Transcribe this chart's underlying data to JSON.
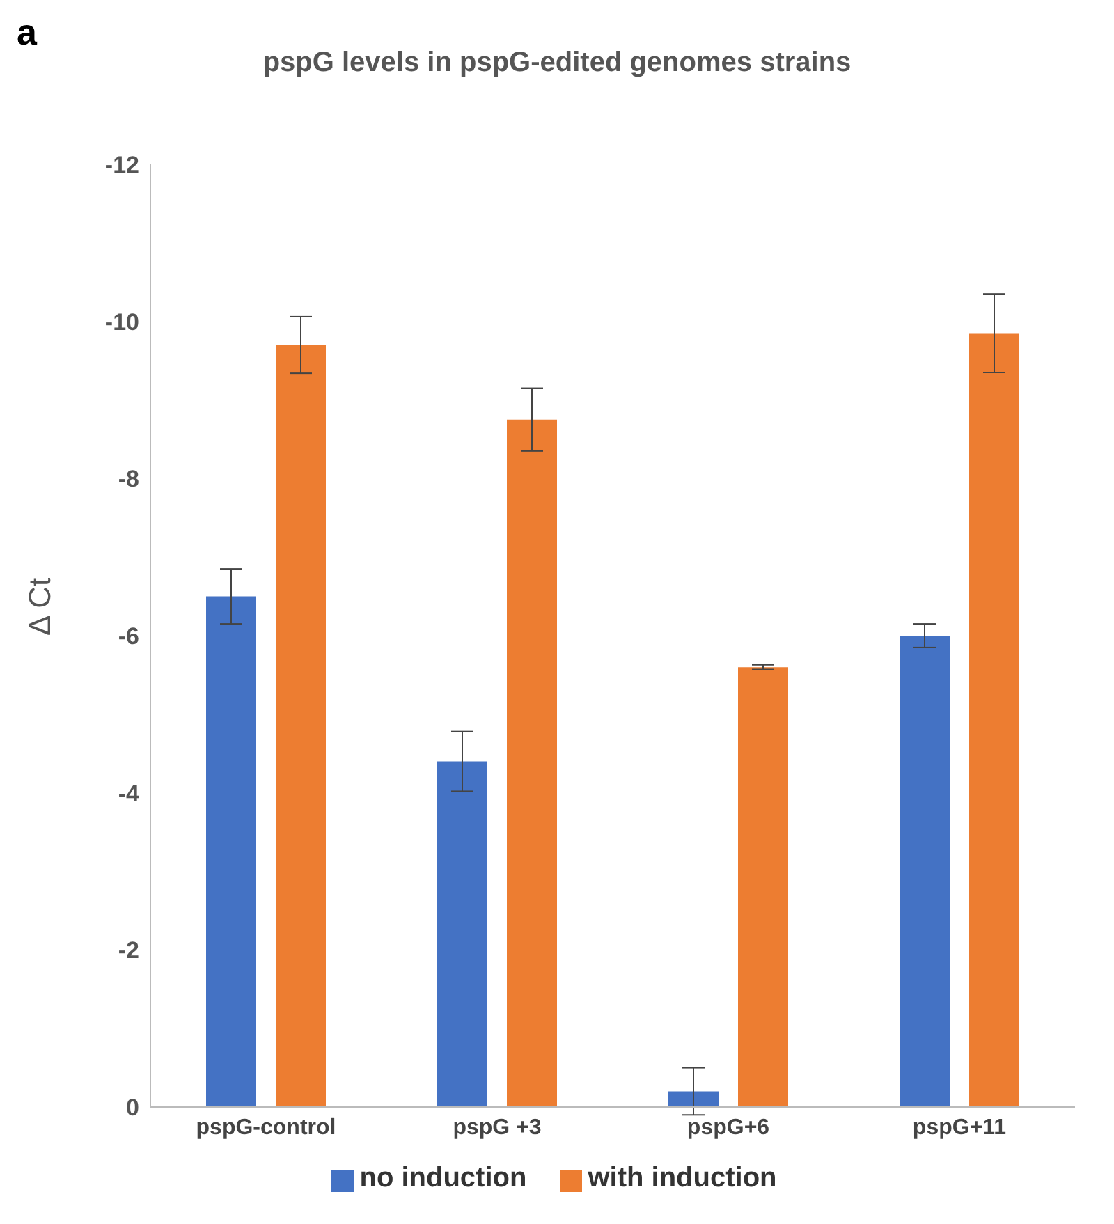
{
  "chart_data": {
    "type": "bar",
    "title": "pspG levels in pspG-edited genomes strains",
    "ylabel": "Δ Ct",
    "annotations": [
      "a"
    ],
    "categories": [
      "pspG-control",
      "pspG +3",
      "pspG+6",
      "pspG+11"
    ],
    "series": [
      {
        "name": "no induction",
        "color": "#4472c4",
        "values": [
          -6.5,
          -4.4,
          -0.2,
          -6.0
        ],
        "errors": [
          0.35,
          0.38,
          0.3,
          0.15
        ]
      },
      {
        "name": "with induction",
        "color": "#ed7d31",
        "values": [
          -9.7,
          -8.75,
          -5.6,
          -9.85
        ],
        "errors": [
          0.36,
          0.4,
          0.03,
          0.5
        ]
      }
    ],
    "ylim": [
      0,
      -12
    ],
    "yticks": [
      0,
      -2,
      -4,
      -6,
      -8,
      -10,
      -12
    ],
    "legend": "bottom"
  }
}
